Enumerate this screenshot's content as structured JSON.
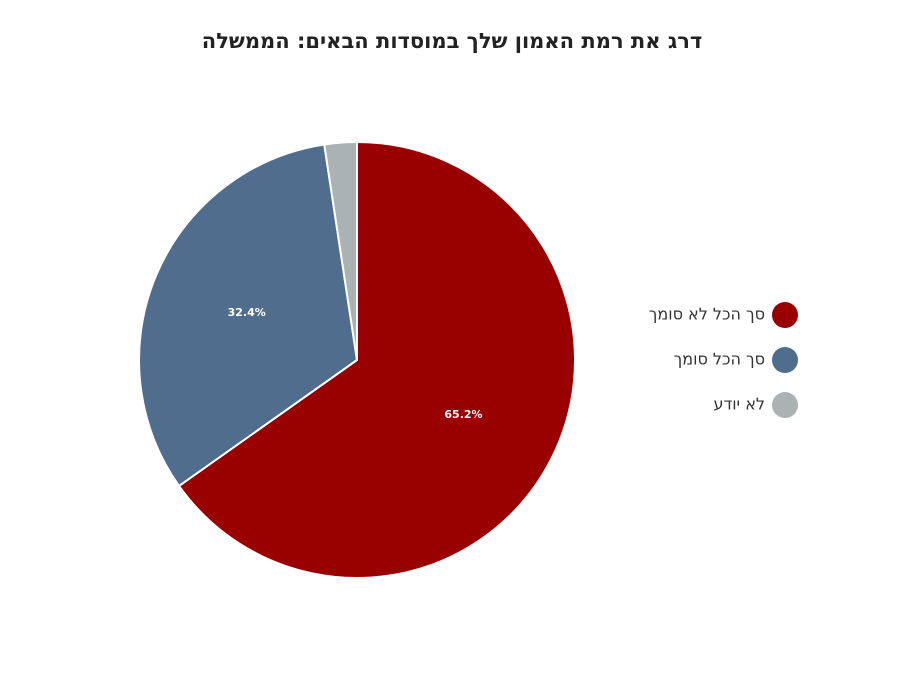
{
  "chart_data": {
    "type": "pie",
    "title": "דרג את רמת האמון שלך במוסדות הבאים: הממשלה",
    "categories": [
      "סך הכל לא סומך",
      "סך הכל סומך",
      "לא יודע"
    ],
    "values": [
      65.2,
      32.4,
      2.4
    ],
    "value_labels": [
      "65.2%",
      "32.4%",
      null
    ],
    "colors": [
      "#990000",
      "#506d8e",
      "#abb2b4"
    ],
    "legend": "right"
  }
}
